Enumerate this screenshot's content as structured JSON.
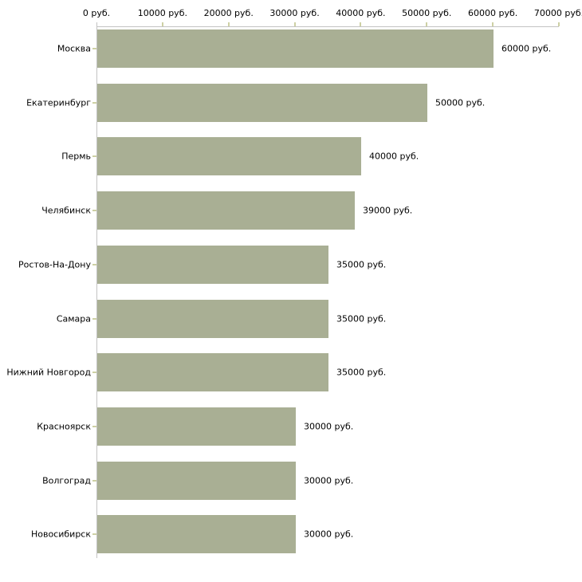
{
  "chart_data": {
    "type": "bar",
    "orientation": "horizontal",
    "title": "",
    "xlabel": "",
    "ylabel": "",
    "categories": [
      "Москва",
      "Екатеринбург",
      "Пермь",
      "Челябинск",
      "Ростов-На-Дону",
      "Самара",
      "Нижний Новгород",
      "Красноярск",
      "Волгоград",
      "Новосибирск"
    ],
    "values": [
      60000,
      50000,
      40000,
      39000,
      35000,
      35000,
      35000,
      30000,
      30000,
      30000
    ],
    "value_labels": [
      "60000 руб.",
      "50000 руб.",
      "40000 руб.",
      "39000 руб.",
      "35000 руб.",
      "35000 руб.",
      "35000 руб.",
      "30000 руб.",
      "30000 руб.",
      "30000 руб."
    ],
    "x_axis": {
      "position": "top",
      "range": [
        0,
        70000
      ],
      "ticks": [
        0,
        10000,
        20000,
        30000,
        40000,
        50000,
        60000,
        70000
      ],
      "tick_labels": [
        "0 руб.",
        "10000 руб.",
        "20000 руб.",
        "30000 руб.",
        "40000 руб.",
        "50000 руб.",
        "60000 руб.",
        "70000 руб."
      ]
    },
    "legend": "none",
    "grid": false,
    "colors": {
      "bar_fill": "#a9af94",
      "axis_line": "#c3c3c3",
      "tick_mark": "#cdd0a4",
      "text": "#000000",
      "background": "#ffffff"
    }
  }
}
